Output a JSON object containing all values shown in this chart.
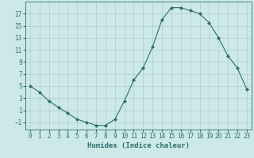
{
  "x": [
    0,
    1,
    2,
    3,
    4,
    5,
    6,
    7,
    8,
    9,
    10,
    11,
    12,
    13,
    14,
    15,
    16,
    17,
    18,
    19,
    20,
    21,
    22,
    23
  ],
  "y": [
    5,
    4,
    2.5,
    1.5,
    0.5,
    -0.5,
    -1,
    -1.5,
    -1.5,
    -0.5,
    2.5,
    6,
    8,
    11.5,
    16,
    18,
    18,
    17.5,
    17,
    15.5,
    13,
    10,
    8,
    4.5
  ],
  "xlabel": "Humidex (Indice chaleur)",
  "xlim": [
    -0.5,
    23.5
  ],
  "ylim": [
    -2.2,
    19.0
  ],
  "yticks": [
    -1,
    1,
    3,
    5,
    7,
    9,
    11,
    13,
    15,
    17
  ],
  "xticks": [
    0,
    1,
    2,
    3,
    4,
    5,
    6,
    7,
    8,
    9,
    10,
    11,
    12,
    13,
    14,
    15,
    16,
    17,
    18,
    19,
    20,
    21,
    22,
    23
  ],
  "line_color": "#2d6e6e",
  "marker": "D",
  "marker_size": 2,
  "bg_color": "#cce8e8",
  "grid_color": "#b0cccc",
  "tick_fontsize": 5.5,
  "label_fontsize": 6.5
}
